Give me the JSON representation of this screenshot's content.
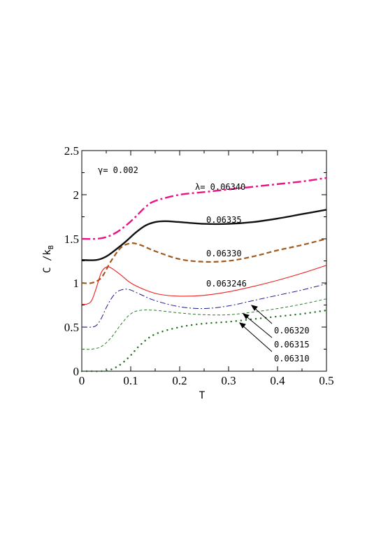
{
  "chart_data": {
    "type": "line",
    "xlabel": "T",
    "ylabel_main": "C /k",
    "ylabel_sub": "B",
    "xlim": [
      0,
      0.5
    ],
    "ylim": [
      0,
      2.5
    ],
    "x_ticks": [
      "0",
      "0.1",
      "0.2",
      "0.3",
      "0.4",
      "0.5"
    ],
    "y_ticks": [
      "0",
      "0.5",
      "1",
      "1.5",
      "2",
      "2.5"
    ],
    "gamma_label": "γ= 0.002",
    "series": [
      {
        "name": "λ= 0.06340",
        "color": "#ee1188",
        "style": "dashdot-thick",
        "x": [
          0,
          0.03,
          0.05,
          0.07,
          0.09,
          0.11,
          0.13,
          0.15,
          0.2,
          0.25,
          0.3,
          0.35,
          0.4,
          0.45,
          0.5
        ],
        "y": [
          1.5,
          1.5,
          1.52,
          1.57,
          1.65,
          1.75,
          1.86,
          1.93,
          2.0,
          2.03,
          2.06,
          2.09,
          2.12,
          2.15,
          2.19
        ]
      },
      {
        "name": "0.06335",
        "color": "#111111",
        "style": "solid-thick",
        "x": [
          0,
          0.03,
          0.05,
          0.07,
          0.09,
          0.11,
          0.13,
          0.15,
          0.17,
          0.2,
          0.25,
          0.3,
          0.35,
          0.4,
          0.45,
          0.5
        ],
        "y": [
          1.26,
          1.26,
          1.3,
          1.38,
          1.47,
          1.57,
          1.65,
          1.69,
          1.7,
          1.69,
          1.67,
          1.67,
          1.69,
          1.73,
          1.78,
          1.83
        ]
      },
      {
        "name": "0.06330",
        "color": "#a05a1e",
        "style": "dashed-thick",
        "x": [
          0,
          0.02,
          0.04,
          0.06,
          0.08,
          0.1,
          0.12,
          0.15,
          0.2,
          0.25,
          0.3,
          0.35,
          0.4,
          0.45,
          0.5
        ],
        "y": [
          1.0,
          1.0,
          1.06,
          1.25,
          1.4,
          1.45,
          1.43,
          1.36,
          1.27,
          1.24,
          1.25,
          1.3,
          1.37,
          1.43,
          1.5
        ]
      },
      {
        "name": "0.063246",
        "color": "#ee2222",
        "style": "solid-thin",
        "x": [
          0,
          0.01,
          0.02,
          0.03,
          0.04,
          0.05,
          0.06,
          0.08,
          0.1,
          0.13,
          0.16,
          0.2,
          0.25,
          0.3,
          0.35,
          0.4,
          0.45,
          0.5
        ],
        "y": [
          0.76,
          0.76,
          0.8,
          0.95,
          1.12,
          1.18,
          1.17,
          1.09,
          1.0,
          0.92,
          0.87,
          0.85,
          0.86,
          0.9,
          0.96,
          1.03,
          1.11,
          1.2
        ]
      },
      {
        "name": "0.06320",
        "color": "#1a1a8c",
        "style": "dashdot-thin",
        "x": [
          0,
          0.02,
          0.03,
          0.04,
          0.05,
          0.06,
          0.07,
          0.08,
          0.09,
          0.1,
          0.12,
          0.15,
          0.2,
          0.25,
          0.3,
          0.35,
          0.4,
          0.45,
          0.5
        ],
        "y": [
          0.5,
          0.5,
          0.52,
          0.6,
          0.72,
          0.82,
          0.89,
          0.92,
          0.93,
          0.92,
          0.87,
          0.8,
          0.73,
          0.71,
          0.74,
          0.8,
          0.86,
          0.92,
          0.99
        ]
      },
      {
        "name": "0.06315",
        "color": "#2a7a2a",
        "style": "dashed-thin",
        "x": [
          0,
          0.02,
          0.04,
          0.06,
          0.08,
          0.1,
          0.12,
          0.15,
          0.2,
          0.25,
          0.3,
          0.35,
          0.4,
          0.45,
          0.5
        ],
        "y": [
          0.25,
          0.25,
          0.28,
          0.38,
          0.53,
          0.65,
          0.69,
          0.69,
          0.66,
          0.64,
          0.64,
          0.67,
          0.71,
          0.76,
          0.82
        ]
      },
      {
        "name": "0.06310",
        "color": "#1e6e1e",
        "style": "dotted",
        "x": [
          0,
          0.02,
          0.04,
          0.06,
          0.08,
          0.1,
          0.12,
          0.15,
          0.2,
          0.25,
          0.3,
          0.35,
          0.4,
          0.45,
          0.5
        ],
        "y": [
          0.0,
          0.0,
          0.0,
          0.02,
          0.08,
          0.18,
          0.3,
          0.42,
          0.5,
          0.54,
          0.56,
          0.59,
          0.62,
          0.65,
          0.69
        ]
      }
    ]
  }
}
